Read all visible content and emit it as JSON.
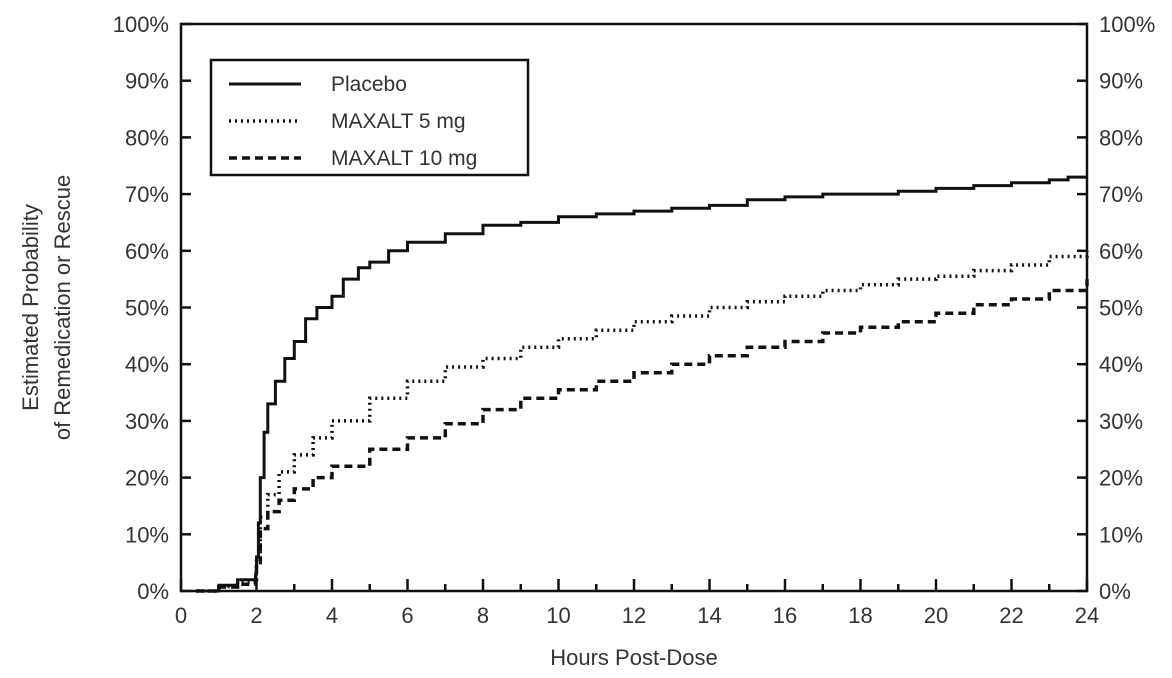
{
  "chart_data": {
    "type": "line",
    "title": "",
    "xlabel": "Hours Post-Dose",
    "ylabel_lines": [
      "Estimated Probability",
      "of Remedication or Rescue"
    ],
    "xlim": [
      0,
      24
    ],
    "ylim": [
      0,
      1
    ],
    "x_ticks": [
      0,
      2,
      4,
      6,
      8,
      10,
      12,
      14,
      16,
      18,
      20,
      22,
      24
    ],
    "y_ticks": [
      0,
      0.1,
      0.2,
      0.3,
      0.4,
      0.5,
      0.6,
      0.7,
      0.8,
      0.9,
      1.0
    ],
    "y_tick_labels": [
      "0%",
      "10%",
      "20%",
      "30%",
      "40%",
      "50%",
      "60%",
      "70%",
      "80%",
      "90%",
      "100%"
    ],
    "right_axis_duplicate": true,
    "grid": false,
    "legend_position": "top-left",
    "line_color": "#111111",
    "series": [
      {
        "name": "Placebo",
        "style": "solid",
        "x": [
          0.4,
          1.0,
          1.5,
          1.98,
          2.0,
          2.05,
          2.1,
          2.2,
          2.3,
          2.5,
          2.75,
          3.0,
          3.3,
          3.6,
          4.0,
          4.3,
          4.7,
          5.0,
          5.5,
          6.0,
          7.0,
          8.0,
          9.0,
          10.0,
          11.0,
          12.0,
          13.0,
          14.0,
          15.0,
          16.0,
          17.0,
          18.0,
          19.0,
          20.0,
          21.0,
          22.0,
          23.0,
          23.5,
          24.0
        ],
        "y": [
          0.0,
          0.01,
          0.02,
          0.03,
          0.06,
          0.12,
          0.2,
          0.28,
          0.33,
          0.37,
          0.41,
          0.44,
          0.48,
          0.5,
          0.52,
          0.55,
          0.57,
          0.58,
          0.6,
          0.615,
          0.63,
          0.645,
          0.65,
          0.66,
          0.665,
          0.67,
          0.675,
          0.68,
          0.69,
          0.695,
          0.7,
          0.7,
          0.705,
          0.71,
          0.715,
          0.72,
          0.725,
          0.73,
          0.73
        ]
      },
      {
        "name": "MAXALT 5 mg",
        "style": "dotted",
        "x": [
          0.4,
          1.0,
          1.5,
          1.98,
          2.0,
          2.1,
          2.3,
          2.6,
          3.0,
          3.5,
          4.0,
          5.0,
          6.0,
          7.0,
          8.0,
          9.0,
          10.0,
          11.0,
          12.0,
          13.0,
          14.0,
          15.0,
          16.0,
          17.0,
          18.0,
          19.0,
          20.0,
          21.0,
          22.0,
          23.0,
          24.0
        ],
        "y": [
          0.0,
          0.008,
          0.015,
          0.025,
          0.06,
          0.13,
          0.17,
          0.21,
          0.24,
          0.27,
          0.3,
          0.34,
          0.37,
          0.395,
          0.41,
          0.43,
          0.445,
          0.46,
          0.475,
          0.485,
          0.5,
          0.51,
          0.52,
          0.53,
          0.54,
          0.55,
          0.555,
          0.565,
          0.575,
          0.59,
          0.6
        ]
      },
      {
        "name": "MAXALT 10 mg",
        "style": "dashed",
        "x": [
          0.4,
          1.0,
          1.5,
          1.98,
          2.0,
          2.1,
          2.3,
          2.6,
          3.0,
          3.5,
          4.0,
          5.0,
          6.0,
          7.0,
          8.0,
          9.0,
          10.0,
          11.0,
          12.0,
          13.0,
          14.0,
          15.0,
          16.0,
          17.0,
          18.0,
          19.0,
          20.0,
          21.0,
          22.0,
          23.0,
          24.0
        ],
        "y": [
          0.0,
          0.007,
          0.012,
          0.02,
          0.05,
          0.11,
          0.14,
          0.16,
          0.18,
          0.2,
          0.22,
          0.25,
          0.27,
          0.295,
          0.32,
          0.34,
          0.355,
          0.37,
          0.385,
          0.4,
          0.415,
          0.43,
          0.44,
          0.455,
          0.465,
          0.475,
          0.49,
          0.505,
          0.515,
          0.53,
          0.55
        ]
      }
    ]
  }
}
